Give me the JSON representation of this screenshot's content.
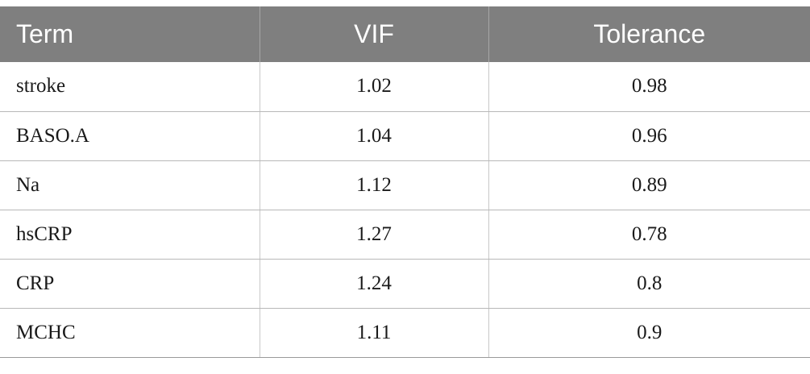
{
  "table": {
    "headers": [
      "Term",
      "VIF",
      "Tolerance"
    ],
    "rows": [
      {
        "term": "stroke",
        "vif": "1.02",
        "tolerance": "0.98"
      },
      {
        "term": "BASO.A",
        "vif": "1.04",
        "tolerance": "0.96"
      },
      {
        "term": "Na",
        "vif": "1.12",
        "tolerance": "0.89"
      },
      {
        "term": "hsCRP",
        "vif": "1.27",
        "tolerance": "0.78"
      },
      {
        "term": "CRP",
        "vif": "1.24",
        "tolerance": "0.8"
      },
      {
        "term": "MCHC",
        "vif": "1.11",
        "tolerance": "0.9"
      }
    ]
  },
  "colors": {
    "header_background": "#7f7f7f",
    "header_text": "#ffffff",
    "row_divider": "#b8b8b8"
  }
}
